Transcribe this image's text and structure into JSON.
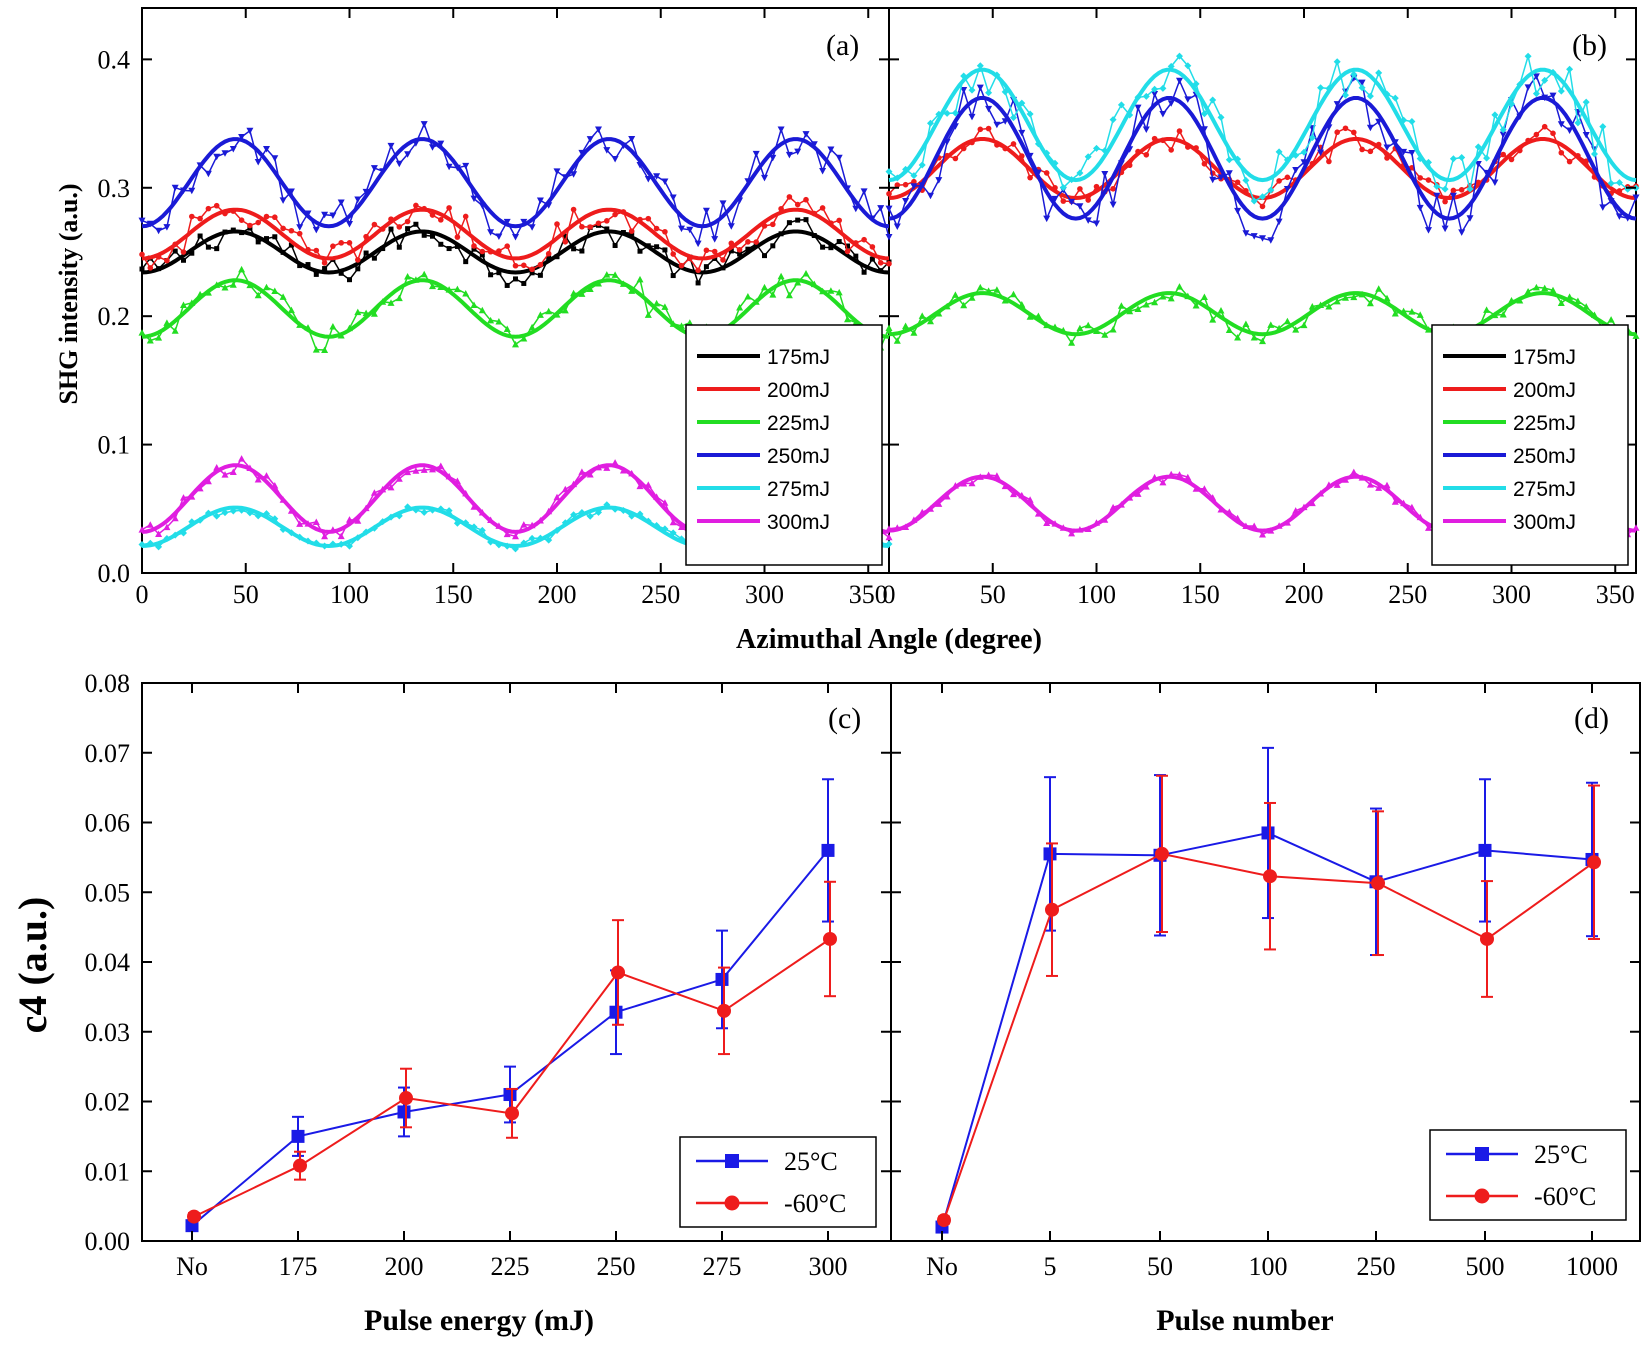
{
  "colors": {
    "175mJ": "#000000",
    "200mJ": "#ee1c1c",
    "225mJ": "#22dd22",
    "250mJ": "#1a1ad6",
    "275mJ": "#22dde8",
    "300mJ": "#e01ee0",
    "25C": "#1a1ae6",
    "-60C": "#ee1c1c"
  },
  "axes": {
    "top_ylabel": "SHG intensity (a.u.)",
    "top_xlabel": "Azimuthal Angle (degree)",
    "bottom_ylabel": "c4 (a.u.)",
    "c_xlabel": "Pulse energy (mJ)",
    "d_xlabel": "Pulse number"
  },
  "chart_data": [
    {
      "panel": "(a)",
      "type": "line",
      "xlim": [
        0,
        360
      ],
      "ylim": [
        0,
        0.44
      ],
      "xticks": [
        0,
        50,
        100,
        150,
        200,
        250,
        300,
        350
      ],
      "yticks": [
        0.0,
        0.1,
        0.2,
        0.3,
        0.4
      ],
      "legend": "bottom-right",
      "series": [
        {
          "name": "175mJ",
          "offset": 0.25,
          "amp": 0.016,
          "noise": 0.011
        },
        {
          "name": "200mJ",
          "offset": 0.264,
          "amp": 0.019,
          "noise": 0.012
        },
        {
          "name": "225mJ",
          "offset": 0.206,
          "amp": 0.022,
          "noise": 0.012
        },
        {
          "name": "250mJ",
          "offset": 0.304,
          "amp": 0.034,
          "noise": 0.016
        },
        {
          "name": "275mJ",
          "offset": 0.036,
          "amp": 0.015,
          "noise": 0.004
        },
        {
          "name": "300mJ",
          "offset": 0.058,
          "amp": 0.026,
          "noise": 0.006
        }
      ]
    },
    {
      "panel": "(b)",
      "type": "line",
      "xlim": [
        0,
        360
      ],
      "ylim": [
        0,
        0.44
      ],
      "xticks": [
        0,
        50,
        100,
        150,
        200,
        250,
        300,
        350
      ],
      "yticks": [
        0.0,
        0.1,
        0.2,
        0.3,
        0.4
      ],
      "legend": "bottom-right",
      "series": [
        {
          "name": "175mJ",
          "offset": null,
          "amp": null,
          "noise": null
        },
        {
          "name": "200mJ",
          "offset": 0.315,
          "amp": 0.023,
          "noise": 0.01
        },
        {
          "name": "225mJ",
          "offset": 0.202,
          "amp": 0.016,
          "noise": 0.008
        },
        {
          "name": "250mJ",
          "offset": 0.323,
          "amp": 0.047,
          "noise": 0.022
        },
        {
          "name": "275mJ",
          "offset": 0.349,
          "amp": 0.043,
          "noise": 0.018
        },
        {
          "name": "300mJ",
          "offset": 0.054,
          "amp": 0.021,
          "noise": 0.004
        }
      ]
    },
    {
      "panel": "(c)",
      "type": "line",
      "categories": [
        "No",
        "175",
        "200",
        "225",
        "250",
        "275",
        "300"
      ],
      "ylim": [
        0,
        0.08
      ],
      "yticks": [
        0.0,
        0.01,
        0.02,
        0.03,
        0.04,
        0.05,
        0.06,
        0.07,
        0.08
      ],
      "legend": "bottom-right",
      "series": [
        {
          "name": "25°C",
          "values": [
            0.0022,
            0.015,
            0.0185,
            0.021,
            0.0328,
            0.0375,
            0.056
          ],
          "errors": [
            0.0005,
            0.0028,
            0.0035,
            0.004,
            0.006,
            0.007,
            0.0102
          ]
        },
        {
          "name": "-60°C",
          "values": [
            0.0035,
            0.0108,
            0.0205,
            0.0183,
            0.0385,
            0.033,
            0.0433
          ],
          "errors": [
            0.0005,
            0.002,
            0.0042,
            0.0035,
            0.0075,
            0.0062,
            0.0082
          ]
        }
      ]
    },
    {
      "panel": "(d)",
      "type": "line",
      "categories": [
        "No",
        "5",
        "50",
        "100",
        "250",
        "500",
        "1000"
      ],
      "ylim": [
        0,
        0.08
      ],
      "yticks": [
        0.0,
        0.01,
        0.02,
        0.03,
        0.04,
        0.05,
        0.06,
        0.07,
        0.08
      ],
      "legend": "bottom-right",
      "series": [
        {
          "name": "25°C",
          "values": [
            0.002,
            0.0555,
            0.0553,
            0.0585,
            0.0515,
            0.056,
            0.0547
          ],
          "errors": [
            0.0005,
            0.011,
            0.0115,
            0.0122,
            0.0105,
            0.0102,
            0.011
          ]
        },
        {
          "name": "-60°C",
          "values": [
            0.003,
            0.0475,
            0.0555,
            0.0523,
            0.0513,
            0.0433,
            0.0543
          ],
          "errors": [
            0.0005,
            0.0095,
            0.0112,
            0.0105,
            0.0103,
            0.0083,
            0.011
          ]
        }
      ]
    }
  ]
}
